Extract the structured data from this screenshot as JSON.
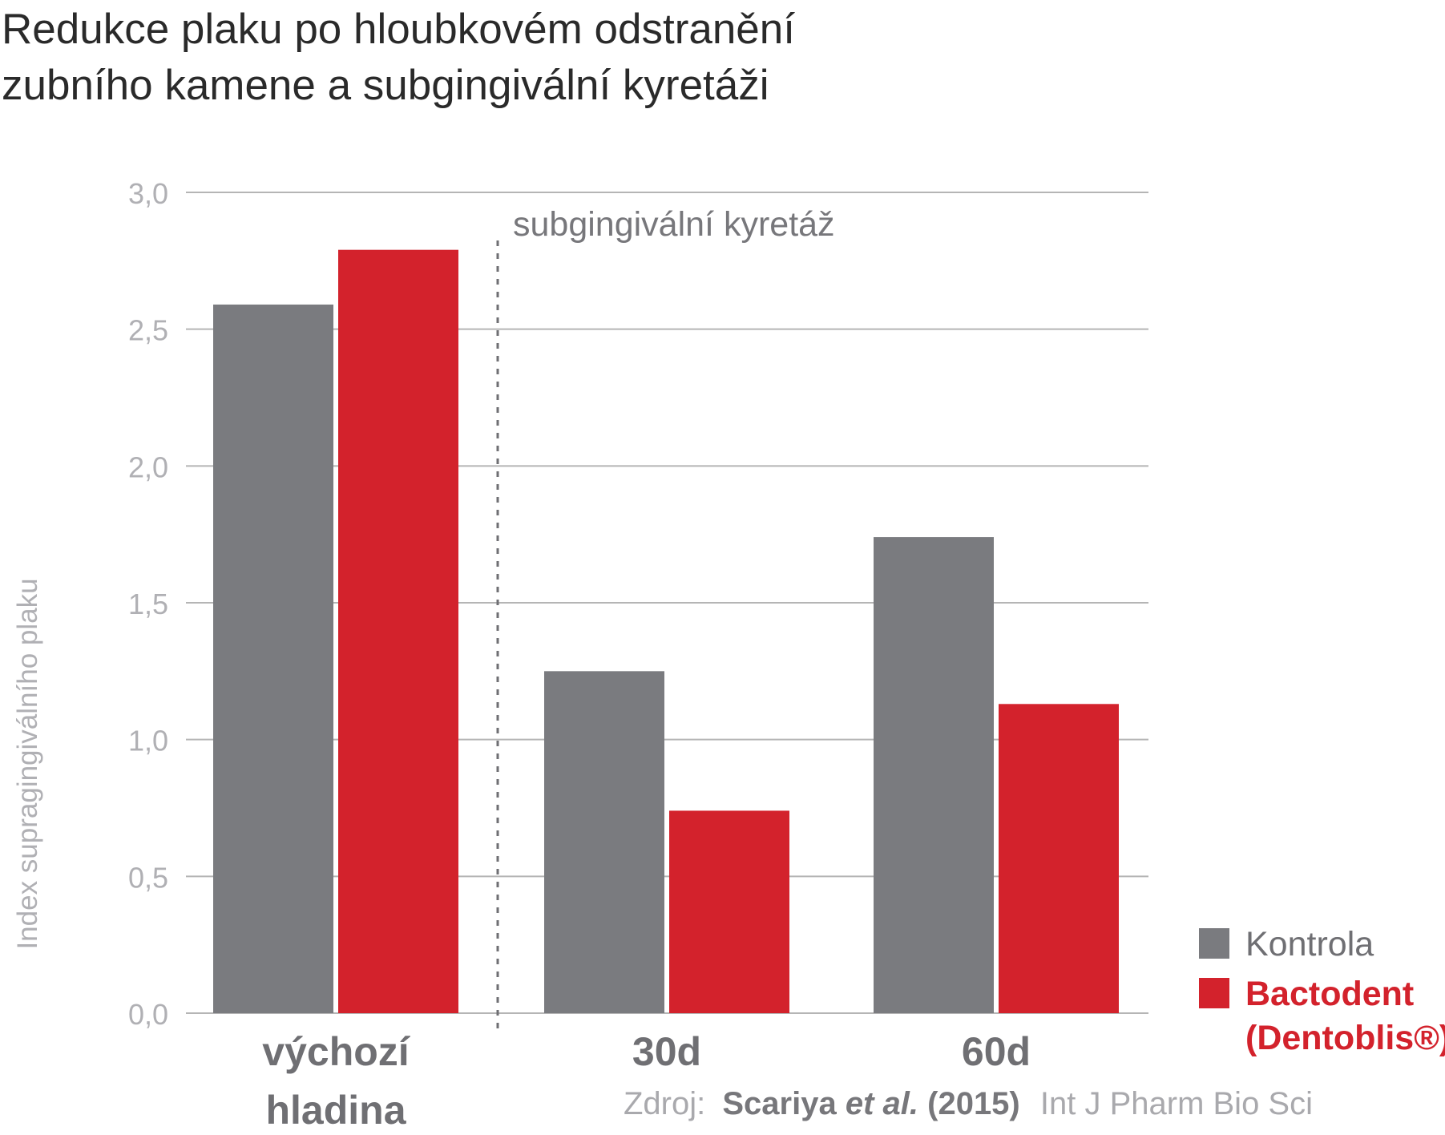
{
  "title_lines": [
    "Redukce plaku po hloubkovém odstranění",
    "zubního kamene a subgingivální kyretáži"
  ],
  "colors": {
    "kontrola": "#7a7b7f",
    "bactodent": "#d3222c",
    "grid": "#b5b5b5",
    "tick_text": "#b0b0b4",
    "category_text": "#6f6f73"
  },
  "source": {
    "label": "Zdroj:",
    "authors": "Scariya",
    "etal": "et al.",
    "year": "(2015)",
    "journal": "Int J Pharm Bio Sci"
  },
  "chart_data": {
    "type": "bar",
    "title": "Redukce plaku po hloubkovém odstranění zubního kamene a subgingivální kyretáži",
    "ylabel": "Index supragingiválního plaku",
    "xlabel": "",
    "ylim": [
      0,
      3.0
    ],
    "yticks": [
      0,
      0.5,
      1.0,
      1.5,
      2.0,
      2.5,
      3.0
    ],
    "ytick_labels": [
      "0,0",
      "0,5",
      "1,0",
      "1,5",
      "2,0",
      "2,5",
      "3,0"
    ],
    "grid": true,
    "categories": [
      [
        "výchozí",
        "hladina"
      ],
      [
        "30d"
      ],
      [
        "60d"
      ]
    ],
    "series": [
      {
        "name": "Kontrola",
        "color": "#7a7b7f",
        "values": [
          2.59,
          1.25,
          1.74
        ]
      },
      {
        "name": "Bactodent (Dentoblis®)",
        "name_lines": [
          "Bactodent",
          "(Dentoblis®)"
        ],
        "color": "#d3222c",
        "values": [
          2.79,
          0.74,
          1.13
        ]
      }
    ],
    "annotation": "subgingivální kyretáž",
    "legend_position": "bottom-right"
  }
}
